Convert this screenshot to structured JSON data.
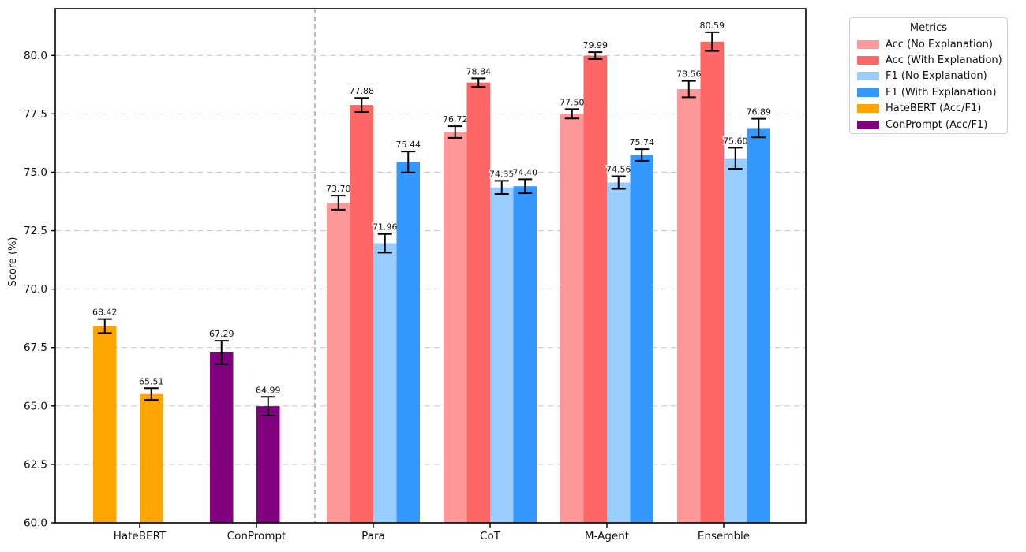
{
  "chart_data": {
    "type": "bar",
    "title": "",
    "xlabel": "",
    "ylabel": "Score (%)",
    "ylim": [
      60,
      82
    ],
    "yticks": [
      60.0,
      62.5,
      65.0,
      67.5,
      70.0,
      72.5,
      75.0,
      77.5,
      80.0
    ],
    "grid": {
      "axis": "y",
      "style": "dashed",
      "color": "#cccccc"
    },
    "separator": {
      "between": [
        "ConPrompt",
        "Para"
      ],
      "style": "dashed",
      "color": "#999999"
    },
    "colors": {
      "acc_no": "#FF9999",
      "acc_with": "#FF6666",
      "f1_no": "#99CCFF",
      "f1_with": "#3399FF",
      "hatebert": "#FFA500",
      "conprompt": "#800080"
    },
    "categories": [
      "HateBERT",
      "ConPrompt",
      "Para",
      "CoT",
      "M-Agent",
      "Ensemble"
    ],
    "groups": [
      {
        "label": "HateBERT",
        "bars": [
          {
            "value": 68.42,
            "err": 0.3,
            "color": "hatebert",
            "slot": 0
          },
          {
            "value": 65.51,
            "err": 0.25,
            "color": "hatebert",
            "slot": 2
          }
        ]
      },
      {
        "label": "ConPrompt",
        "bars": [
          {
            "value": 67.29,
            "err": 0.5,
            "color": "conprompt",
            "slot": 0
          },
          {
            "value": 64.99,
            "err": 0.4,
            "color": "conprompt",
            "slot": 2
          }
        ]
      },
      {
        "label": "Para",
        "bars": [
          {
            "value": 73.7,
            "err": 0.3,
            "color": "acc_no",
            "slot": 0
          },
          {
            "value": 77.88,
            "err": 0.3,
            "color": "acc_with",
            "slot": 1
          },
          {
            "value": 71.96,
            "err": 0.4,
            "color": "f1_no",
            "slot": 2
          },
          {
            "value": 75.44,
            "err": 0.45,
            "color": "f1_with",
            "slot": 3
          }
        ]
      },
      {
        "label": "CoT",
        "bars": [
          {
            "value": 76.72,
            "err": 0.25,
            "color": "acc_no",
            "slot": 0
          },
          {
            "value": 78.84,
            "err": 0.18,
            "color": "acc_with",
            "slot": 1
          },
          {
            "value": 74.35,
            "err": 0.28,
            "color": "f1_no",
            "slot": 2
          },
          {
            "value": 74.4,
            "err": 0.3,
            "color": "f1_with",
            "slot": 3
          }
        ]
      },
      {
        "label": "M-Agent",
        "bars": [
          {
            "value": 77.5,
            "err": 0.2,
            "color": "acc_no",
            "slot": 0
          },
          {
            "value": 79.99,
            "err": 0.15,
            "color": "acc_with",
            "slot": 1
          },
          {
            "value": 74.56,
            "err": 0.27,
            "color": "f1_no",
            "slot": 2
          },
          {
            "value": 75.74,
            "err": 0.25,
            "color": "f1_with",
            "slot": 3
          }
        ]
      },
      {
        "label": "Ensemble",
        "bars": [
          {
            "value": 78.56,
            "err": 0.35,
            "color": "acc_no",
            "slot": 0
          },
          {
            "value": 80.59,
            "err": 0.4,
            "color": "acc_with",
            "slot": 1
          },
          {
            "value": 75.6,
            "err": 0.45,
            "color": "f1_no",
            "slot": 2
          },
          {
            "value": 76.89,
            "err": 0.4,
            "color": "f1_with",
            "slot": 3
          }
        ]
      }
    ],
    "legend": {
      "title": "Metrics",
      "position": "outside-upper-right",
      "entries": [
        {
          "label": "Acc (No Explanation)",
          "color": "acc_no"
        },
        {
          "label": "Acc (With Explanation)",
          "color": "acc_with"
        },
        {
          "label": "F1 (No Explanation)",
          "color": "f1_no"
        },
        {
          "label": "F1 (With Explanation)",
          "color": "f1_with"
        },
        {
          "label": "HateBERT (Acc/F1)",
          "color": "hatebert"
        },
        {
          "label": "ConPrompt (Acc/F1)",
          "color": "conprompt"
        }
      ]
    }
  }
}
